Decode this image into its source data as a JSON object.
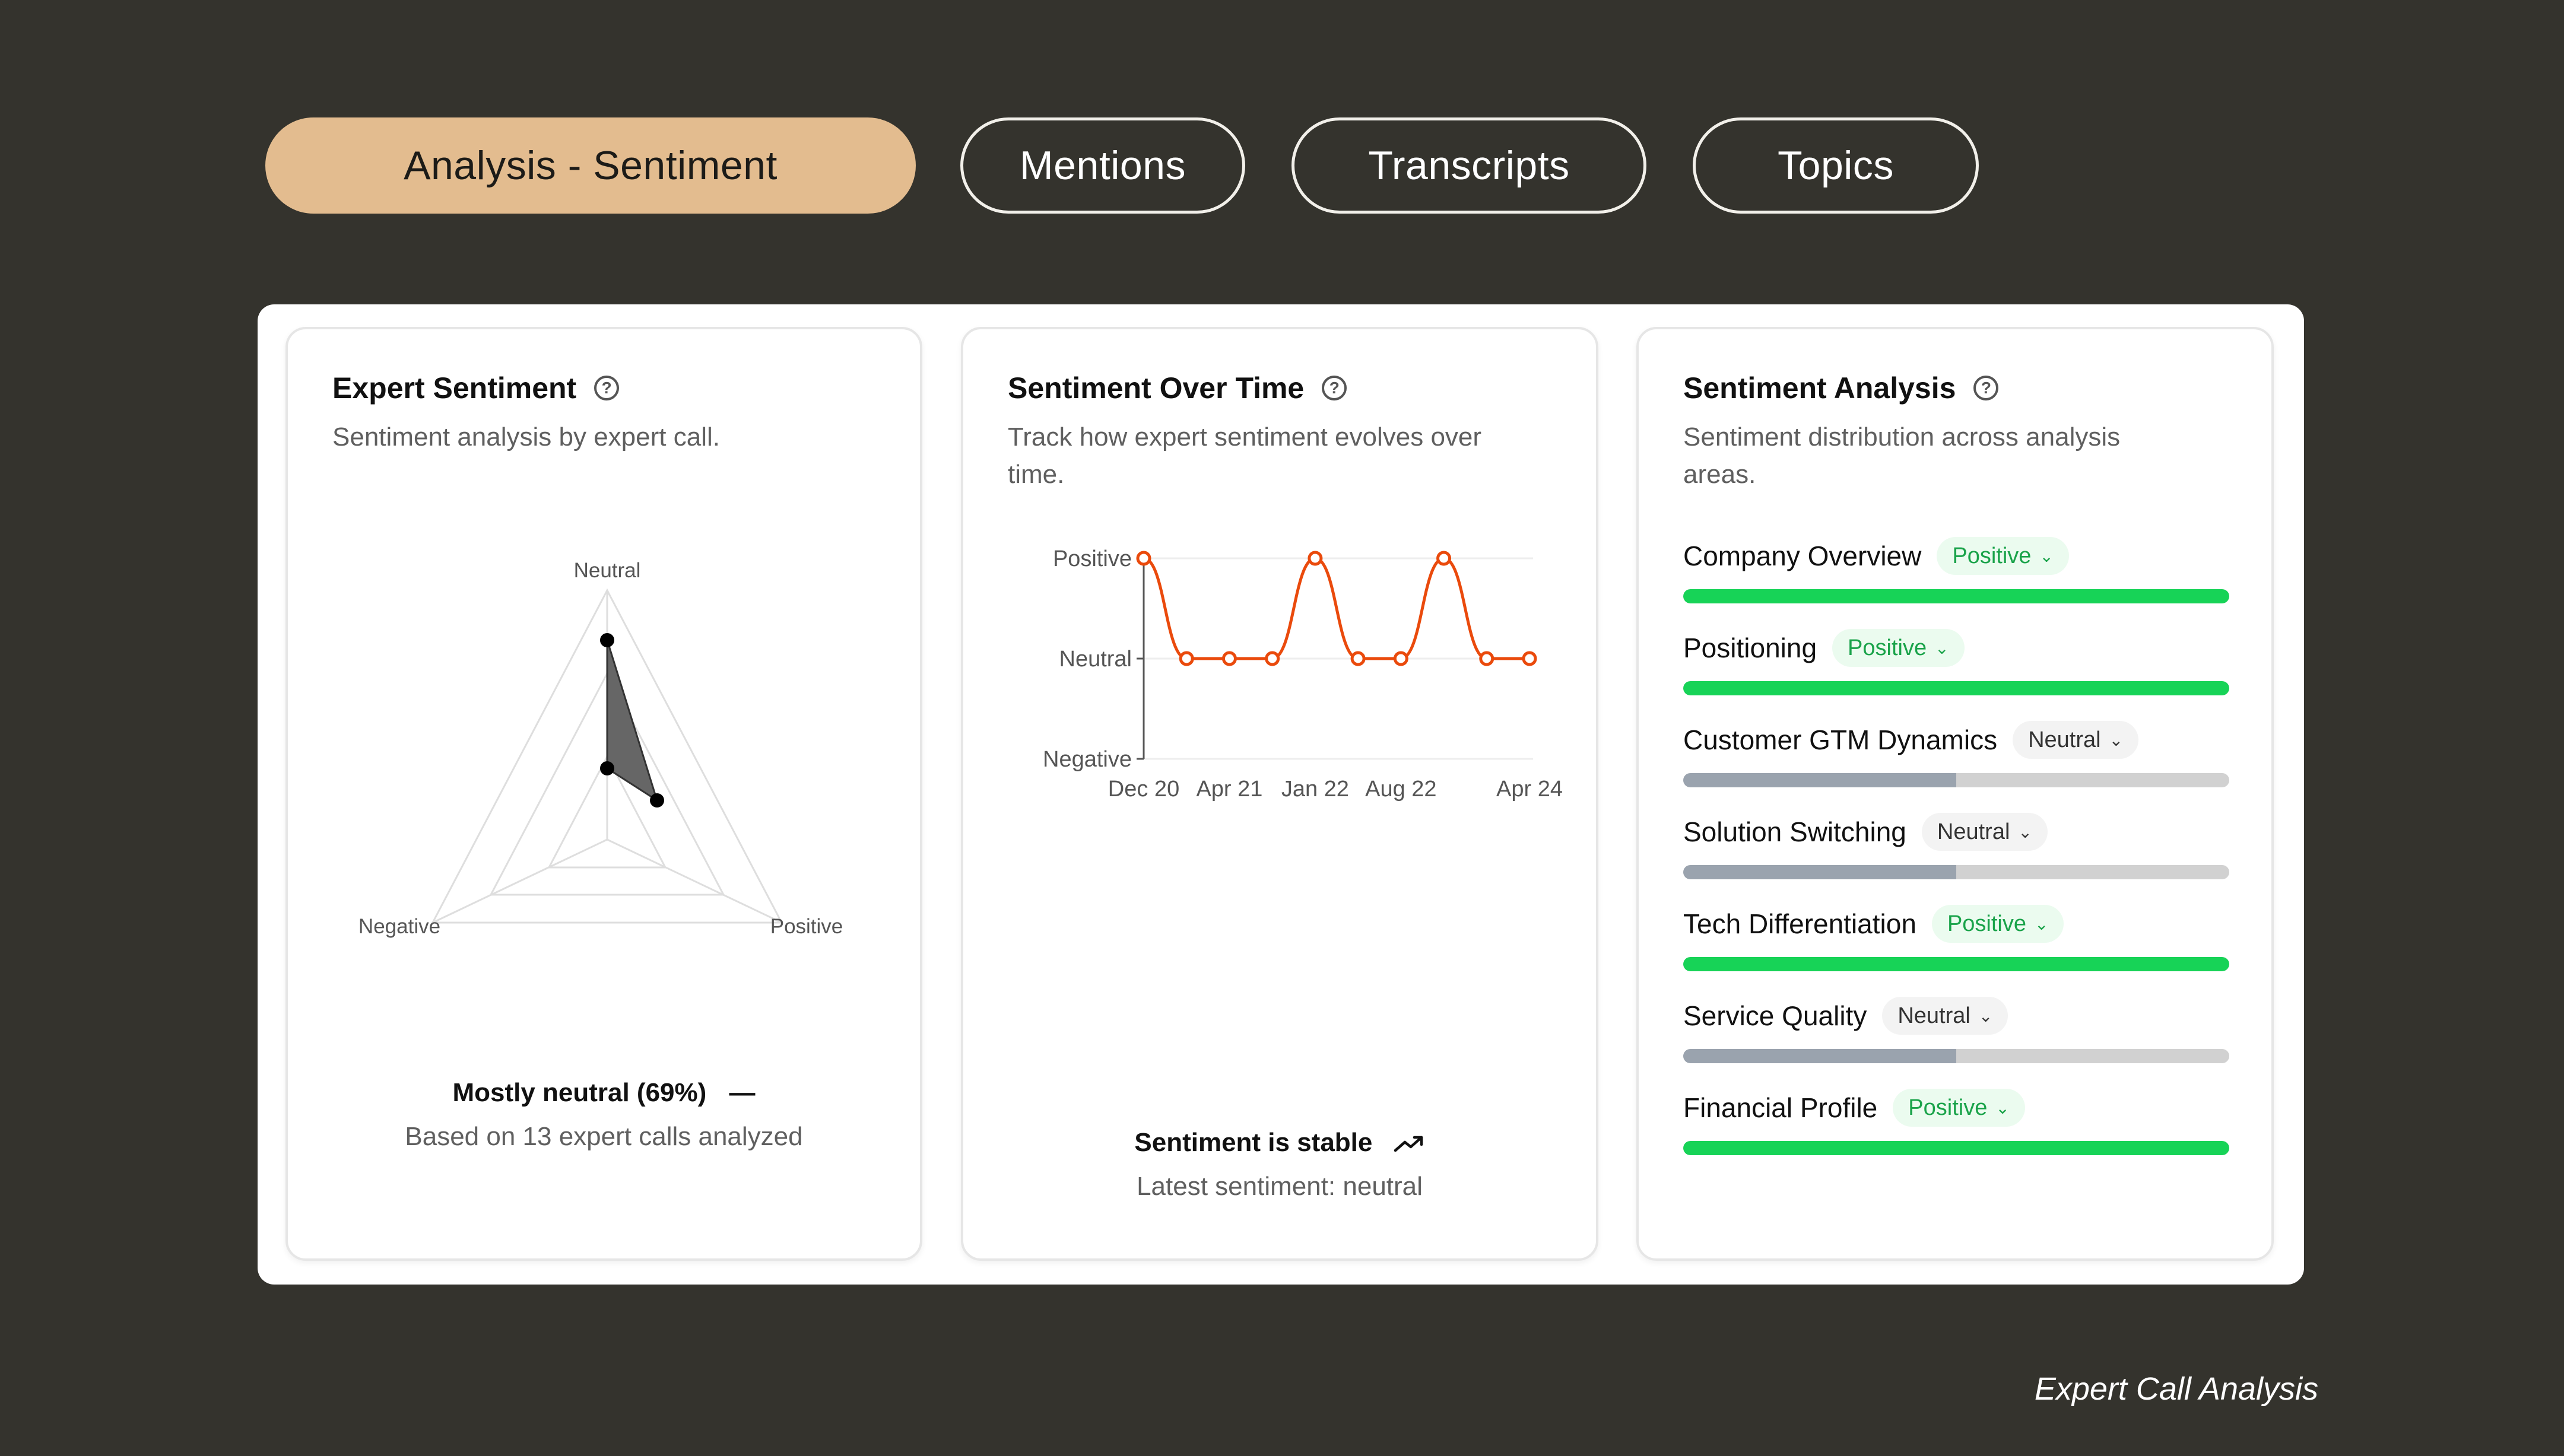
{
  "tabs": [
    {
      "label": "Analysis - Sentiment",
      "active": true
    },
    {
      "label": "Mentions",
      "active": false
    },
    {
      "label": "Transcripts",
      "active": false
    },
    {
      "label": "Topics",
      "active": false
    }
  ],
  "expert_sentiment": {
    "title": "Expert Sentiment",
    "subtitle": "Sentiment analysis by expert call.",
    "help_icon": "help-circle-icon",
    "radar_axes": [
      "Neutral",
      "Negative",
      "Positive"
    ],
    "radar_values": {
      "Neutral": 0.69,
      "Negative": 0.0,
      "Positive": 0.31
    },
    "summary": "Mostly neutral (69%)",
    "summary_icon": "dash-icon",
    "summary_sub": "Based on 13 expert calls analyzed"
  },
  "sentiment_over_time": {
    "title": "Sentiment Over Time",
    "subtitle_line1": "Track how expert sentiment evolves over",
    "subtitle_line2": "time.",
    "help_icon": "help-circle-icon",
    "summary": "Sentiment is stable",
    "summary_icon": "trending-up-icon",
    "summary_sub": "Latest sentiment: neutral"
  },
  "chart_data": {
    "type": "line",
    "y_categories": [
      "Negative",
      "Neutral",
      "Positive"
    ],
    "x_tick_labels": [
      "Dec 20",
      "Apr 21",
      "Jan 22",
      "Aug 22",
      "Apr 24"
    ],
    "series": [
      {
        "values": [
          "Positive",
          "Neutral",
          "Neutral",
          "Neutral",
          "Positive",
          "Neutral",
          "Neutral",
          "Positive",
          "Neutral",
          "Neutral"
        ]
      }
    ],
    "color": "#ea4a0c"
  },
  "sentiment_analysis": {
    "title": "Sentiment Analysis",
    "subtitle_line1": "Sentiment distribution across analysis",
    "subtitle_line2": "areas.",
    "help_icon": "help-circle-icon",
    "areas": [
      {
        "name": "Company Overview",
        "status": "Positive",
        "fill": 1.0
      },
      {
        "name": "Positioning",
        "status": "Positive",
        "fill": 1.0
      },
      {
        "name": "Customer GTM Dynamics",
        "status": "Neutral",
        "fill": 0.5
      },
      {
        "name": "Solution Switching",
        "status": "Neutral",
        "fill": 0.5
      },
      {
        "name": "Tech Differentiation",
        "status": "Positive",
        "fill": 1.0
      },
      {
        "name": "Service Quality",
        "status": "Neutral",
        "fill": 0.5
      },
      {
        "name": "Financial Profile",
        "status": "Positive",
        "fill": 1.0
      }
    ]
  },
  "colors": {
    "background": "#34332d",
    "accent_tab": "#e3bc8f",
    "positive": "#17d357",
    "neutral": "#9aa3ae",
    "line": "#ea4a0c"
  },
  "caption": "Expert Call Analysis"
}
